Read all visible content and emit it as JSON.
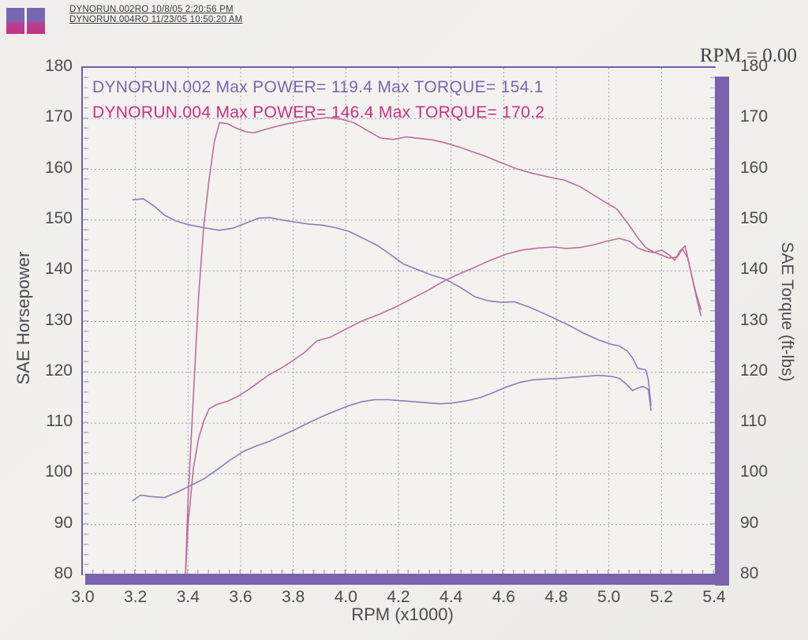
{
  "header": {
    "files": [
      "DYNORUN.002RO  10/8/05 2:20:56 PM",
      "DYNORUN.004RO  11/23/05 10:50:20 AM"
    ],
    "rpm_readout": "RPM = 0.00"
  },
  "colors": {
    "run1": "#7568b1",
    "run1_curve": "#8a7dbe",
    "run2": "#c23488",
    "run2_curve": "#bd6d9e",
    "frame": "#6f5dae",
    "bar": "#7b62ae",
    "grid": "#95a0ad",
    "tick_text": "#4b4b50"
  },
  "chart_data": {
    "type": "line",
    "title": "",
    "xlabel": "RPM (x1000)",
    "ylabel_left": "SAE Horsepower",
    "ylabel_right": "SAE Torque (ft-lbs)",
    "xlim": [
      3.0,
      5.4
    ],
    "ylim": [
      80,
      180
    ],
    "x_ticks": [
      3.0,
      3.2,
      3.4,
      3.6,
      3.8,
      4.0,
      4.2,
      4.4,
      4.6,
      4.8,
      5.0,
      5.2,
      5.4
    ],
    "y_ticks": [
      80,
      90,
      100,
      110,
      120,
      130,
      140,
      150,
      160,
      170,
      180
    ],
    "grid": true,
    "grid_style": "dashed",
    "legend_position": "top-left-inside",
    "annotations": [
      {
        "text": "DYNORUN.002  Max POWER= 119.4  Max TORQUE= 154.1",
        "color": "#7468b2",
        "run": "DYNORUN.002",
        "max_power": 119.4,
        "max_torque": 154.1
      },
      {
        "text": "DYNORUN.004  Max POWER= 146.4  Max TORQUE= 170.2",
        "color": "#ca2f86",
        "run": "DYNORUN.004",
        "max_power": 146.4,
        "max_torque": 170.2
      }
    ],
    "series": [
      {
        "name": "DYNORUN.002 torque (ft-lbs)",
        "color": "#8a7dbe",
        "width": 1.6,
        "points": [
          [
            3.19,
            154.0
          ],
          [
            3.23,
            154.2
          ],
          [
            3.27,
            152.8
          ],
          [
            3.31,
            151.0
          ],
          [
            3.35,
            149.9
          ],
          [
            3.4,
            149.1
          ],
          [
            3.46,
            148.5
          ],
          [
            3.52,
            148.0
          ],
          [
            3.57,
            148.4
          ],
          [
            3.62,
            149.4
          ],
          [
            3.67,
            150.4
          ],
          [
            3.71,
            150.5
          ],
          [
            3.76,
            150.0
          ],
          [
            3.81,
            149.6
          ],
          [
            3.86,
            149.2
          ],
          [
            3.91,
            149.0
          ],
          [
            3.96,
            148.5
          ],
          [
            4.01,
            147.8
          ],
          [
            4.07,
            146.3
          ],
          [
            4.12,
            145.0
          ],
          [
            4.17,
            143.2
          ],
          [
            4.22,
            141.3
          ],
          [
            4.28,
            140.1
          ],
          [
            4.33,
            139.1
          ],
          [
            4.38,
            138.3
          ],
          [
            4.44,
            136.6
          ],
          [
            4.49,
            134.9
          ],
          [
            4.54,
            134.1
          ],
          [
            4.59,
            133.8
          ],
          [
            4.64,
            133.9
          ],
          [
            4.69,
            133.0
          ],
          [
            4.74,
            131.9
          ],
          [
            4.79,
            130.7
          ],
          [
            4.85,
            129.2
          ],
          [
            4.9,
            127.8
          ],
          [
            4.96,
            126.4
          ],
          [
            5.01,
            125.5
          ],
          [
            5.04,
            125.2
          ],
          [
            5.07,
            124.2
          ],
          [
            5.09,
            122.8
          ],
          [
            5.11,
            120.8
          ],
          [
            5.14,
            120.5
          ],
          [
            5.15,
            118.5
          ],
          [
            5.16,
            113.5
          ]
        ]
      },
      {
        "name": "DYNORUN.002 power (hp)",
        "color": "#8a7dbe",
        "width": 1.6,
        "points": [
          [
            3.19,
            94.7
          ],
          [
            3.22,
            95.8
          ],
          [
            3.26,
            95.5
          ],
          [
            3.31,
            95.3
          ],
          [
            3.36,
            96.4
          ],
          [
            3.41,
            97.7
          ],
          [
            3.46,
            99.0
          ],
          [
            3.51,
            100.8
          ],
          [
            3.56,
            102.7
          ],
          [
            3.61,
            104.4
          ],
          [
            3.66,
            105.5
          ],
          [
            3.71,
            106.4
          ],
          [
            3.76,
            107.6
          ],
          [
            3.81,
            108.8
          ],
          [
            3.86,
            110.1
          ],
          [
            3.91,
            111.3
          ],
          [
            3.96,
            112.4
          ],
          [
            4.01,
            113.4
          ],
          [
            4.06,
            114.2
          ],
          [
            4.11,
            114.6
          ],
          [
            4.16,
            114.6
          ],
          [
            4.21,
            114.4
          ],
          [
            4.26,
            114.2
          ],
          [
            4.31,
            114.0
          ],
          [
            4.36,
            113.8
          ],
          [
            4.41,
            114.0
          ],
          [
            4.46,
            114.4
          ],
          [
            4.51,
            115.0
          ],
          [
            4.56,
            116.0
          ],
          [
            4.61,
            117.1
          ],
          [
            4.66,
            118.0
          ],
          [
            4.71,
            118.5
          ],
          [
            4.76,
            118.7
          ],
          [
            4.81,
            118.8
          ],
          [
            4.86,
            119.0
          ],
          [
            4.91,
            119.2
          ],
          [
            4.96,
            119.4
          ],
          [
            5.01,
            119.2
          ],
          [
            5.04,
            118.8
          ],
          [
            5.07,
            117.5
          ],
          [
            5.09,
            116.4
          ],
          [
            5.11,
            116.9
          ],
          [
            5.13,
            117.2
          ],
          [
            5.15,
            116.6
          ],
          [
            5.16,
            112.5
          ]
        ]
      },
      {
        "name": "DYNORUN.004 torque (ft-lbs)",
        "color": "#bd6d9e",
        "width": 1.6,
        "points": [
          [
            3.39,
            80.0
          ],
          [
            3.4,
            95.0
          ],
          [
            3.42,
            115.0
          ],
          [
            3.44,
            135.0
          ],
          [
            3.46,
            149.0
          ],
          [
            3.48,
            158.0
          ],
          [
            3.5,
            165.5
          ],
          [
            3.52,
            169.2
          ],
          [
            3.55,
            169.0
          ],
          [
            3.58,
            168.2
          ],
          [
            3.62,
            167.4
          ],
          [
            3.65,
            167.2
          ],
          [
            3.69,
            167.8
          ],
          [
            3.73,
            168.4
          ],
          [
            3.78,
            169.0
          ],
          [
            3.83,
            169.5
          ],
          [
            3.88,
            169.9
          ],
          [
            3.93,
            170.2
          ],
          [
            3.98,
            169.9
          ],
          [
            4.03,
            169.2
          ],
          [
            4.08,
            167.7
          ],
          [
            4.13,
            166.2
          ],
          [
            4.18,
            165.9
          ],
          [
            4.23,
            166.4
          ],
          [
            4.28,
            166.1
          ],
          [
            4.33,
            165.8
          ],
          [
            4.38,
            165.2
          ],
          [
            4.43,
            164.4
          ],
          [
            4.48,
            163.5
          ],
          [
            4.53,
            162.6
          ],
          [
            4.59,
            161.3
          ],
          [
            4.65,
            160.1
          ],
          [
            4.71,
            159.2
          ],
          [
            4.77,
            158.5
          ],
          [
            4.83,
            157.9
          ],
          [
            4.89,
            156.6
          ],
          [
            4.94,
            155.0
          ],
          [
            4.99,
            153.4
          ],
          [
            5.03,
            152.2
          ],
          [
            5.07,
            149.5
          ],
          [
            5.11,
            146.5
          ],
          [
            5.14,
            144.6
          ],
          [
            5.17,
            143.7
          ],
          [
            5.2,
            143.1
          ],
          [
            5.23,
            142.5
          ],
          [
            5.26,
            142.7
          ],
          [
            5.28,
            144.3
          ],
          [
            5.3,
            142.5
          ],
          [
            5.32,
            137.8
          ],
          [
            5.34,
            133.2
          ],
          [
            5.35,
            131.2
          ]
        ]
      },
      {
        "name": "DYNORUN.004 power (hp)",
        "color": "#bd6d9e",
        "width": 1.6,
        "points": [
          [
            3.39,
            80.0
          ],
          [
            3.4,
            90.0
          ],
          [
            3.42,
            101.0
          ],
          [
            3.44,
            107.0
          ],
          [
            3.46,
            110.4
          ],
          [
            3.48,
            112.8
          ],
          [
            3.51,
            113.7
          ],
          [
            3.55,
            114.3
          ],
          [
            3.59,
            115.3
          ],
          [
            3.63,
            116.6
          ],
          [
            3.67,
            118.1
          ],
          [
            3.71,
            119.6
          ],
          [
            3.75,
            120.7
          ],
          [
            3.79,
            122.0
          ],
          [
            3.84,
            123.8
          ],
          [
            3.89,
            126.2
          ],
          [
            3.94,
            126.9
          ],
          [
            4.0,
            128.5
          ],
          [
            4.06,
            130.1
          ],
          [
            4.13,
            131.5
          ],
          [
            4.19,
            132.9
          ],
          [
            4.25,
            134.5
          ],
          [
            4.31,
            136.1
          ],
          [
            4.37,
            137.9
          ],
          [
            4.43,
            139.4
          ],
          [
            4.49,
            140.7
          ],
          [
            4.55,
            142.1
          ],
          [
            4.61,
            143.3
          ],
          [
            4.67,
            144.1
          ],
          [
            4.73,
            144.5
          ],
          [
            4.79,
            144.7
          ],
          [
            4.84,
            144.4
          ],
          [
            4.89,
            144.6
          ],
          [
            4.94,
            145.1
          ],
          [
            4.99,
            145.8
          ],
          [
            5.04,
            146.4
          ],
          [
            5.08,
            145.8
          ],
          [
            5.11,
            144.5
          ],
          [
            5.14,
            143.9
          ],
          [
            5.17,
            143.6
          ],
          [
            5.2,
            144.1
          ],
          [
            5.23,
            143.1
          ],
          [
            5.25,
            142.1
          ],
          [
            5.27,
            143.9
          ],
          [
            5.29,
            144.9
          ],
          [
            5.31,
            140.2
          ],
          [
            5.33,
            135.8
          ],
          [
            5.35,
            132.4
          ]
        ]
      }
    ]
  }
}
